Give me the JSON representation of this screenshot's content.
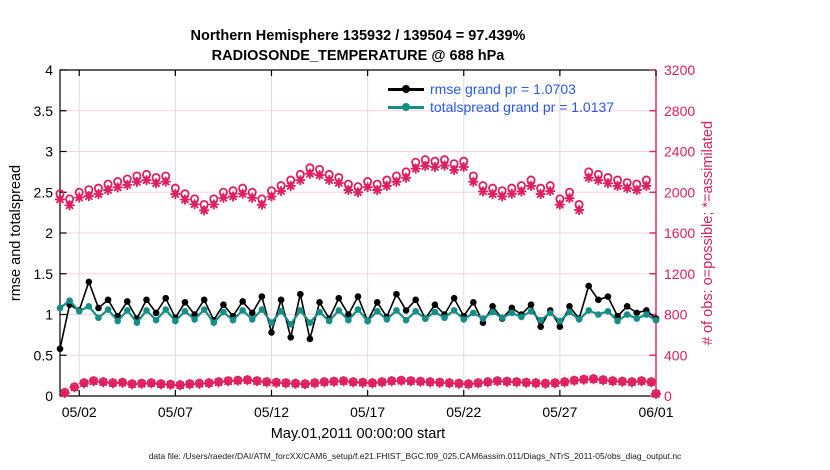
{
  "figure": {
    "title_line1": "Northern Hemisphere 135932 / 139504 = 97.439%",
    "title_line2": "RADIOSONDE_TEMPERATURE @ 688 hPa",
    "xlabel": "May.01,2011 00:00:00 start",
    "ylabel_left": "rmse and totalspread",
    "ylabel_right": "# of obs: o=possible; *=assimilated",
    "caption": "data file: /Users/raeder/DAI/ATM_forcXX/CAM6_setup/f.e21.FHIST_BGC.f09_025.CAM6assim.011/Diags_NTrS_2011-05/obs_diag_output.nc"
  },
  "legend": {
    "text_color": "#2a5adf",
    "items": [
      {
        "label": "rmse grand pr = 1.0703",
        "color": "#000000"
      },
      {
        "label": "totalspread grand pr = 1.0137",
        "color": "#158f85"
      }
    ]
  },
  "colors": {
    "rmse": "#000000",
    "totalspread": "#158f85",
    "obs_pink": "#de2060",
    "grid_pink": "#f7d3de",
    "grid_gray": "#dedede",
    "axis_black": "#000000"
  },
  "chart_data": {
    "type": "line",
    "title": "Northern Hemisphere 135932 / 139504 = 97.439% | RADIOSONDE_TEMPERATURE @ 688 hPa",
    "xlabel": "May.01,2011 00:00:00 start",
    "ylabel_left": "rmse and totalspread",
    "ylabel_right": "# of obs: o=possible; *=assimilated",
    "grid": true,
    "x_axis": {
      "units": "days since May 1 2011 00:00",
      "range_days": [
        0,
        31
      ],
      "tick_days": [
        1,
        6,
        11,
        16,
        21,
        26,
        31
      ],
      "tick_labels": [
        "05/02",
        "05/07",
        "05/12",
        "05/17",
        "05/22",
        "05/27",
        "06/01"
      ]
    },
    "y_left": {
      "range": [
        0,
        4
      ],
      "ticks": [
        0,
        0.5,
        1,
        1.5,
        2,
        2.5,
        3,
        3.5,
        4
      ],
      "tick_labels": [
        "0",
        "0.5",
        "1",
        "1.5",
        "2",
        "2.5",
        "3",
        "3.5",
        "4"
      ]
    },
    "y_right": {
      "range": [
        0,
        3200
      ],
      "ticks": [
        0,
        400,
        800,
        1200,
        1600,
        2000,
        2400,
        2800,
        3200
      ],
      "tick_labels": [
        "0",
        "400",
        "800",
        "1200",
        "1600",
        "2000",
        "2400",
        "2800",
        "3200"
      ]
    },
    "series": [
      {
        "name": "n_possible_offsynoptic",
        "axis": "right",
        "color": "#de2060",
        "line": false,
        "marker": "circle",
        "t0": 0.25,
        "dt": 0.5,
        "values": [
          35,
          90,
          130,
          150,
          140,
          130,
          135,
          120,
          125,
          130,
          120,
          115,
          110,
          120,
          125,
          130,
          140,
          150,
          155,
          160,
          150,
          140,
          135,
          130,
          125,
          120,
          130,
          140,
          145,
          150,
          140,
          135,
          130,
          140,
          150,
          155,
          150,
          145,
          140,
          135,
          130,
          125,
          120,
          130,
          140,
          150,
          145,
          140,
          135,
          130,
          125,
          130,
          140,
          155,
          165,
          170,
          160,
          150,
          145,
          140,
          150,
          140
        ]
      },
      {
        "name": "n_assimilated_offsynoptic",
        "axis": "right",
        "color": "#de2060",
        "line": false,
        "marker": "asterisk",
        "t0": 0.25,
        "dt": 0.5,
        "values": [
          30,
          85,
          125,
          145,
          135,
          125,
          130,
          115,
          120,
          125,
          115,
          110,
          105,
          115,
          120,
          125,
          135,
          145,
          150,
          155,
          145,
          135,
          130,
          125,
          120,
          115,
          125,
          135,
          140,
          145,
          135,
          130,
          125,
          135,
          145,
          150,
          145,
          140,
          135,
          130,
          125,
          120,
          115,
          125,
          135,
          145,
          140,
          135,
          130,
          125,
          120,
          125,
          135,
          150,
          160,
          165,
          155,
          145,
          140,
          135,
          145,
          135
        ]
      },
      {
        "name": "n_assimilated",
        "axis": "right",
        "color": "#de2060",
        "line": false,
        "marker": "asterisk",
        "t0": 0,
        "dt": 0.5,
        "values": [
          1930,
          1872,
          1948,
          1962,
          1982,
          2022,
          2048,
          2072,
          2102,
          2118,
          2088,
          2104,
          1982,
          1928,
          1882,
          1822,
          1880,
          1945,
          1958,
          1985,
          1945,
          1878,
          1958,
          2012,
          2062,
          2118,
          2182,
          2168,
          2120,
          2092,
          2022,
          2000,
          2050,
          2022,
          2062,
          2102,
          2142,
          2232,
          2258,
          2248,
          2262,
          2218,
          2248,
          2102,
          2008,
          1982,
          1960,
          1985,
          2008,
          2062,
          1982,
          2012,
          1878,
          1942,
          1825,
          2142,
          2118,
          2088,
          2062,
          2040,
          2022,
          2062,
          20
        ]
      },
      {
        "name": "n_possible",
        "axis": "right",
        "color": "#de2060",
        "line": false,
        "marker": "circle",
        "t0": 0,
        "dt": 0.5,
        "values": [
          1985,
          1935,
          2000,
          2025,
          2040,
          2080,
          2105,
          2130,
          2160,
          2175,
          2145,
          2160,
          2040,
          1985,
          1935,
          1880,
          1935,
          2000,
          2015,
          2040,
          2000,
          1935,
          2015,
          2065,
          2120,
          2175,
          2240,
          2225,
          2175,
          2145,
          2080,
          2055,
          2105,
          2080,
          2120,
          2160,
          2200,
          2295,
          2320,
          2305,
          2320,
          2280,
          2305,
          2160,
          2065,
          2040,
          2015,
          2040,
          2065,
          2120,
          2040,
          2065,
          1935,
          2000,
          1880,
          2200,
          2175,
          2145,
          2120,
          2095,
          2080,
          2120,
          25
        ]
      },
      {
        "name": "rmse",
        "axis": "left",
        "color": "#000000",
        "line": true,
        "marker": "dot",
        "t0": 0,
        "dt": 0.5,
        "values": [
          0.58,
          1.12,
          1.05,
          1.4,
          1.08,
          1.18,
          0.98,
          1.16,
          0.95,
          1.18,
          1.02,
          1.2,
          0.96,
          1.15,
          1.0,
          1.18,
          0.93,
          1.12,
          0.98,
          1.16,
          1.02,
          1.22,
          0.78,
          1.18,
          0.72,
          1.25,
          0.7,
          1.15,
          0.95,
          1.2,
          1.0,
          1.22,
          0.92,
          1.15,
          0.97,
          1.25,
          1.05,
          1.18,
          0.95,
          1.12,
          1.0,
          1.2,
          0.98,
          1.15,
          0.9,
          1.1,
          0.95,
          1.08,
          1.0,
          1.12,
          0.85,
          1.05,
          0.85,
          1.1,
          0.95,
          1.35,
          1.18,
          1.22,
          0.98,
          1.1,
          1.02,
          1.05,
          0.95
        ]
      },
      {
        "name": "totalspread",
        "axis": "left",
        "color": "#158f85",
        "line": true,
        "marker": "dot",
        "t0": 0,
        "dt": 0.5,
        "values": [
          1.08,
          1.17,
          1.04,
          1.1,
          0.96,
          1.06,
          0.92,
          1.05,
          0.9,
          1.05,
          0.93,
          1.06,
          0.92,
          1.04,
          0.94,
          1.06,
          0.9,
          1.03,
          0.93,
          1.05,
          0.94,
          1.06,
          0.9,
          1.04,
          0.88,
          1.05,
          0.9,
          1.03,
          0.92,
          1.05,
          0.93,
          1.06,
          0.92,
          1.04,
          0.94,
          1.05,
          0.93,
          1.04,
          0.95,
          1.03,
          0.96,
          1.05,
          0.94,
          1.02,
          0.95,
          1.03,
          0.96,
          1.02,
          0.97,
          1.04,
          0.93,
          1.02,
          0.92,
          1.03,
          0.94,
          1.05,
          1.0,
          1.04,
          0.92,
          1.0,
          0.95,
          1.0,
          0.93
        ]
      }
    ],
    "stats": {
      "rmse_grand_pr": 1.0703,
      "totalspread_grand_pr": 1.0137,
      "n_assimilated_total": 135932,
      "n_possible_total": 139504,
      "pct_assimilated": 97.439
    }
  }
}
